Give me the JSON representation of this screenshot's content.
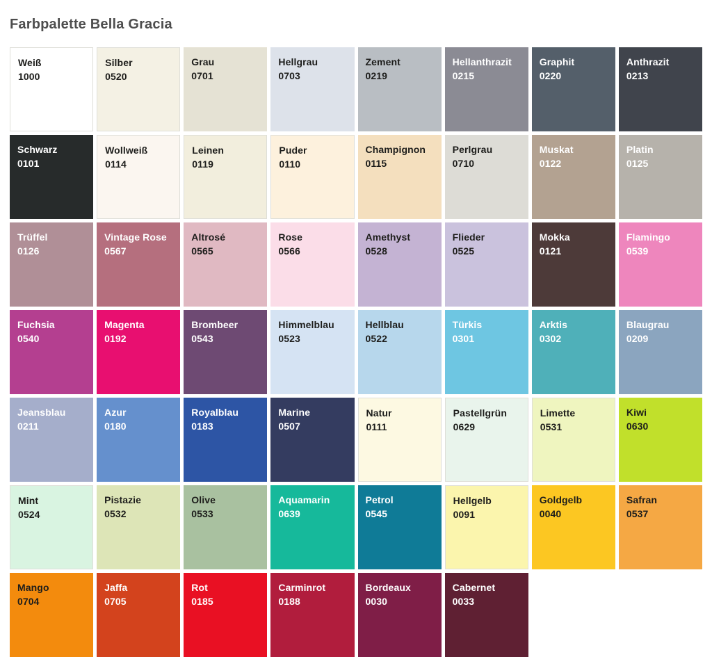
{
  "title": "Farbpalette Bella Gracia",
  "palette": {
    "columns": 8,
    "text_dark": "#1d1d1b",
    "text_light": "#ffffff",
    "swatches": [
      {
        "name": "Weiß",
        "code": "1000",
        "color": "#ffffff",
        "text": "dark",
        "border": true
      },
      {
        "name": "Silber",
        "code": "0520",
        "color": "#f4f1e4",
        "text": "dark",
        "border": true
      },
      {
        "name": "Grau",
        "code": "0701",
        "color": "#e5e2d4",
        "text": "dark",
        "border": false
      },
      {
        "name": "Hellgrau",
        "code": "0703",
        "color": "#dde2ea",
        "text": "dark",
        "border": false
      },
      {
        "name": "Zement",
        "code": "0219",
        "color": "#b9bec3",
        "text": "dark",
        "border": false
      },
      {
        "name": "Hellanthrazit",
        "code": "0215",
        "color": "#8b8b94",
        "text": "light",
        "border": false
      },
      {
        "name": "Graphit",
        "code": "0220",
        "color": "#545f6a",
        "text": "light",
        "border": false
      },
      {
        "name": "Anthrazit",
        "code": "0213",
        "color": "#40444c",
        "text": "light",
        "border": false
      },
      {
        "name": "Schwarz",
        "code": "0101",
        "color": "#272b2b",
        "text": "light",
        "border": false
      },
      {
        "name": "Wollweiß",
        "code": "0114",
        "color": "#fbf6f0",
        "text": "dark",
        "border": true
      },
      {
        "name": "Leinen",
        "code": "0119",
        "color": "#f2eedd",
        "text": "dark",
        "border": true
      },
      {
        "name": "Puder",
        "code": "0110",
        "color": "#fdf1dd",
        "text": "dark",
        "border": true
      },
      {
        "name": "Champignon",
        "code": "0115",
        "color": "#f4dfbe",
        "text": "dark",
        "border": false
      },
      {
        "name": "Perlgrau",
        "code": "0710",
        "color": "#dddcd6",
        "text": "dark",
        "border": false
      },
      {
        "name": "Muskat",
        "code": "0122",
        "color": "#b3a291",
        "text": "light",
        "border": false
      },
      {
        "name": "Platin",
        "code": "0125",
        "color": "#b6b2ab",
        "text": "light",
        "border": false
      },
      {
        "name": "Trüffel",
        "code": "0126",
        "color": "#b08f97",
        "text": "light",
        "border": false
      },
      {
        "name": "Vintage Rose",
        "code": "0567",
        "color": "#b56f7e",
        "text": "light",
        "border": false
      },
      {
        "name": "Altrosé",
        "code": "0565",
        "color": "#e0b9c2",
        "text": "dark",
        "border": false
      },
      {
        "name": "Rose",
        "code": "0566",
        "color": "#fbdde8",
        "text": "dark",
        "border": false
      },
      {
        "name": "Amethyst",
        "code": "0528",
        "color": "#c4b3d3",
        "text": "dark",
        "border": false
      },
      {
        "name": "Flieder",
        "code": "0525",
        "color": "#cac2dd",
        "text": "dark",
        "border": false
      },
      {
        "name": "Mokka",
        "code": "0121",
        "color": "#4d3a39",
        "text": "light",
        "border": false
      },
      {
        "name": "Flamingo",
        "code": "0539",
        "color": "#ee86bd",
        "text": "light",
        "border": false
      },
      {
        "name": "Fuchsia",
        "code": "0540",
        "color": "#b43f90",
        "text": "light",
        "border": false
      },
      {
        "name": "Magenta",
        "code": "0192",
        "color": "#e80f70",
        "text": "light",
        "border": false
      },
      {
        "name": "Brombeer",
        "code": "0543",
        "color": "#6e4a73",
        "text": "light",
        "border": false
      },
      {
        "name": "Himmelblau",
        "code": "0523",
        "color": "#d5e3f3",
        "text": "dark",
        "border": false
      },
      {
        "name": "Hellblau",
        "code": "0522",
        "color": "#b7d7ec",
        "text": "dark",
        "border": false
      },
      {
        "name": "Türkis",
        "code": "0301",
        "color": "#6ec6e2",
        "text": "light",
        "border": false
      },
      {
        "name": "Arktis",
        "code": "0302",
        "color": "#4fb0b9",
        "text": "light",
        "border": false
      },
      {
        "name": "Blaugrau",
        "code": "0209",
        "color": "#8ba5bf",
        "text": "light",
        "border": false
      },
      {
        "name": "Jeansblau",
        "code": "0211",
        "color": "#a5aecb",
        "text": "light",
        "border": false
      },
      {
        "name": "Azur",
        "code": "0180",
        "color": "#6590cd",
        "text": "light",
        "border": false
      },
      {
        "name": "Royalblau",
        "code": "0183",
        "color": "#2d55a5",
        "text": "light",
        "border": false
      },
      {
        "name": "Marine",
        "code": "0507",
        "color": "#343c60",
        "text": "light",
        "border": false
      },
      {
        "name": "Natur",
        "code": "0111",
        "color": "#fdf9e2",
        "text": "dark",
        "border": true
      },
      {
        "name": "Pastellgrün",
        "code": "0629",
        "color": "#e9f4ec",
        "text": "dark",
        "border": true
      },
      {
        "name": "Limette",
        "code": "0531",
        "color": "#eff5bf",
        "text": "dark",
        "border": true
      },
      {
        "name": "Kiwi",
        "code": "0630",
        "color": "#c1e02b",
        "text": "dark",
        "border": false
      },
      {
        "name": "Mint",
        "code": "0524",
        "color": "#d9f4e1",
        "text": "dark",
        "border": true
      },
      {
        "name": "Pistazie",
        "code": "0532",
        "color": "#dde5b7",
        "text": "dark",
        "border": false
      },
      {
        "name": "Olive",
        "code": "0533",
        "color": "#a9c1a0",
        "text": "dark",
        "border": false
      },
      {
        "name": "Aquamarin",
        "code": "0639",
        "color": "#16b99b",
        "text": "light",
        "border": false
      },
      {
        "name": "Petrol",
        "code": "0545",
        "color": "#0f7b97",
        "text": "light",
        "border": false
      },
      {
        "name": "Hellgelb",
        "code": "0091",
        "color": "#fbf5ad",
        "text": "dark",
        "border": true
      },
      {
        "name": "Goldgelb",
        "code": "0040",
        "color": "#fcc722",
        "text": "dark",
        "border": false
      },
      {
        "name": "Safran",
        "code": "0537",
        "color": "#f5a844",
        "text": "dark",
        "border": false
      },
      {
        "name": "Mango",
        "code": "0704",
        "color": "#f38b0d",
        "text": "dark",
        "border": false
      },
      {
        "name": "Jaffa",
        "code": "0705",
        "color": "#d3431d",
        "text": "light",
        "border": false
      },
      {
        "name": "Rot",
        "code": "0185",
        "color": "#e91023",
        "text": "light",
        "border": false
      },
      {
        "name": "Carminrot",
        "code": "0188",
        "color": "#b11d3d",
        "text": "light",
        "border": false
      },
      {
        "name": "Bordeaux",
        "code": "0030",
        "color": "#7f1e47",
        "text": "light",
        "border": false
      },
      {
        "name": "Cabernet",
        "code": "0033",
        "color": "#5f2033",
        "text": "light",
        "border": false
      }
    ]
  }
}
